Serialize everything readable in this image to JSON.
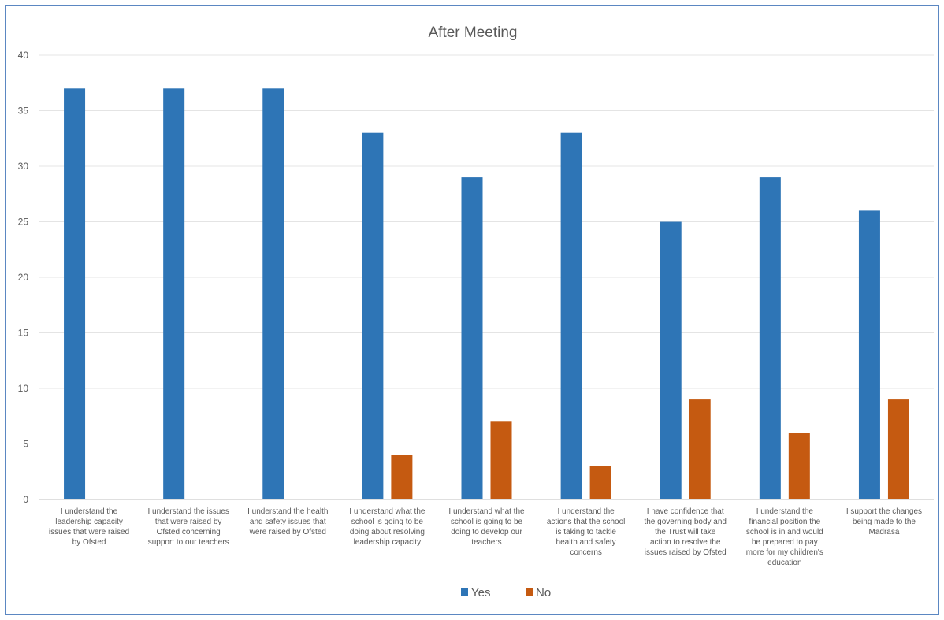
{
  "chart_data": {
    "type": "bar",
    "title": "After Meeting",
    "xlabel": "",
    "ylabel": "",
    "ylim": [
      0,
      40
    ],
    "yticks": [
      0,
      5,
      10,
      15,
      20,
      25,
      30,
      35,
      40
    ],
    "grid": true,
    "legend_position": "bottom",
    "categories": [
      "I understand the leadership capacity issues that were raised by Ofsted",
      "I understand the issues that were raised by Ofsted concerning support to our teachers",
      "I understand the health and safety issues that were raised by Ofsted",
      "I understand what the school is going to be doing about resolving leadership capacity",
      "I understand what the school is going to be doing to develop our teachers",
      "I understand the actions that the school is taking to tackle health and safety concerns",
      "I have confidence that the governing body and the Trust will take action to resolve the issues raised by Ofsted",
      "I understand the financial position the school is in and would be prepared to pay more for my children's education",
      "I support the changes being made to the Madrasa"
    ],
    "category_lines": [
      [
        "I understand the",
        "leadership capacity",
        "issues that were raised",
        "by Ofsted"
      ],
      [
        "I understand the issues",
        "that were raised by",
        "Ofsted concerning",
        "support to our teachers"
      ],
      [
        "I understand the health",
        "and safety issues that",
        "were raised by Ofsted"
      ],
      [
        "I understand what the",
        "school is going to be",
        "doing about resolving",
        "leadership capacity"
      ],
      [
        "I understand what the",
        "school is going to be",
        "doing to develop our",
        "teachers"
      ],
      [
        "I understand the",
        "actions that the school",
        "is taking to tackle",
        "health and safety",
        "concerns"
      ],
      [
        "I have confidence that",
        "the governing body and",
        "the Trust will take",
        "action to resolve the",
        "issues raised by Ofsted"
      ],
      [
        "I understand the",
        "financial position the",
        "school is in and would",
        "be prepared to pay",
        "more for my children's",
        "education"
      ],
      [
        "I support the changes",
        "being made to the",
        "Madrasa"
      ]
    ],
    "series": [
      {
        "name": "Yes",
        "color": "#2e75b6",
        "values": [
          37,
          37,
          37,
          33,
          29,
          33,
          25,
          29,
          26
        ]
      },
      {
        "name": "No",
        "color": "#c55a11",
        "values": [
          null,
          null,
          null,
          4,
          7,
          3,
          9,
          6,
          9
        ]
      }
    ]
  }
}
